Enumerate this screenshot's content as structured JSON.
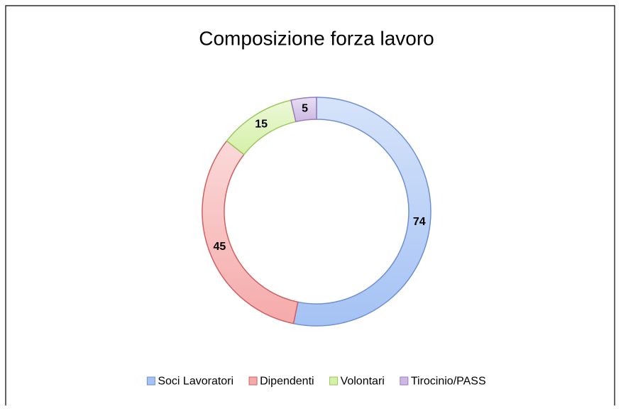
{
  "chart_data": {
    "type": "doughnut",
    "title": "Composizione forza lavoro",
    "categories": [
      "Soci Lavoratori",
      "Dipendenti",
      "Volontari",
      "Tirocinio/PASS"
    ],
    "values": [
      74,
      45,
      15,
      5
    ],
    "colors": [
      "#a4c2f4",
      "#f5aaaa",
      "#d5f0a8",
      "#cdb8e3"
    ],
    "edgecolors": [
      "#6f8fd0",
      "#d06060",
      "#9cc860",
      "#9a7cc0"
    ],
    "legend": "bottom"
  }
}
